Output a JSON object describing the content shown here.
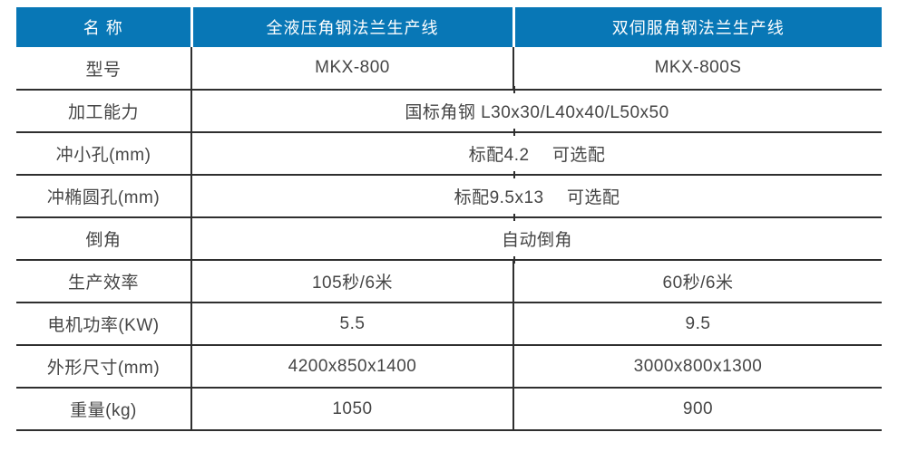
{
  "colors": {
    "header_bg": "#0877B6",
    "header_text": "#FFFFFF",
    "border": "#2F2F2F",
    "text": "#454545",
    "background": "#FFFFFF"
  },
  "table": {
    "header": {
      "name_label": "名 称",
      "product1": "全液压角钢法兰生产线",
      "product2": "双伺服角钢法兰生产线"
    },
    "rows": [
      {
        "label": "型号",
        "col1": "MKX-800",
        "col2": "MKX-800S"
      },
      {
        "label": "加工能力",
        "value": "国标角钢 L30x30/L40x40/L50x50"
      },
      {
        "label": "冲小孔(mm)",
        "value": "标配4.2　 可选配"
      },
      {
        "label": "冲椭圆孔(mm)",
        "value": "标配9.5x13　 可选配"
      },
      {
        "label": "倒角",
        "value": "自动倒角"
      },
      {
        "label": "生产效率",
        "col1": "105秒/6米",
        "col2": "60秒/6米"
      },
      {
        "label": "电机功率(KW)",
        "col1": "5.5",
        "col2": "9.5"
      },
      {
        "label": "外形尺寸(mm)",
        "col1": "4200x850x1400",
        "col2": "3000x800x1300"
      },
      {
        "label": "重量(kg)",
        "col1": "1050",
        "col2": "900"
      }
    ]
  }
}
